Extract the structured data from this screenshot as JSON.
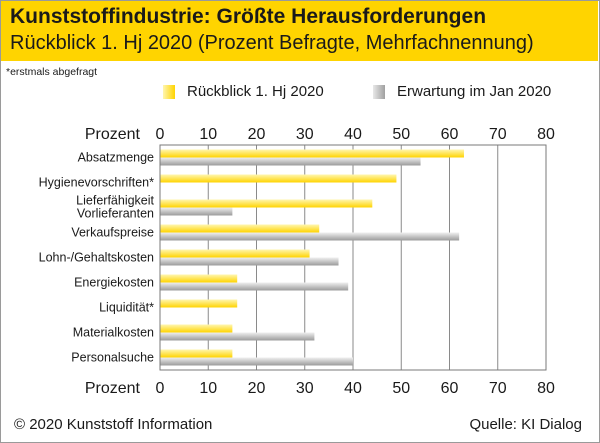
{
  "header": {
    "title": "Kunststoffindustrie: Größte Herausforderungen",
    "subtitle": "Rückblick 1. Hj 2020 (Prozent Befragte, Mehrfachnennung)"
  },
  "footnote": "*erstmals abgefragt",
  "footer": {
    "copyright": "© 2020 Kunststoff Information",
    "source": "Quelle: KI Dialog"
  },
  "colors": {
    "series1_light": "#fff6b0",
    "series1_dark": "#ffd400",
    "series2_light": "#f0f0f0",
    "series2_dark": "#9a9a9a",
    "header_bg": "#ffd400"
  },
  "chart_data": {
    "type": "bar",
    "orientation": "horizontal",
    "axis_label": "Prozent",
    "xlim": [
      0,
      80
    ],
    "ticks": [
      0,
      10,
      20,
      30,
      40,
      50,
      60,
      70,
      80
    ],
    "grid": true,
    "legend_position": "top",
    "categories": [
      "Absatzmenge",
      "Hygienevorschriften*",
      "Lieferfähigkeit Vorlieferanten",
      "Verkaufspreise",
      "Lohn-/Gehaltskosten",
      "Energiekosten",
      "Liquidität*",
      "Materialkosten",
      "Personalsuche"
    ],
    "series": [
      {
        "name": "Rückblick 1. Hj 2020",
        "values": [
          63,
          49,
          44,
          33,
          31,
          16,
          16,
          15,
          15
        ]
      },
      {
        "name": "Erwartung im Jan 2020",
        "values": [
          54,
          null,
          15,
          62,
          37,
          39,
          null,
          32,
          40
        ]
      }
    ]
  }
}
